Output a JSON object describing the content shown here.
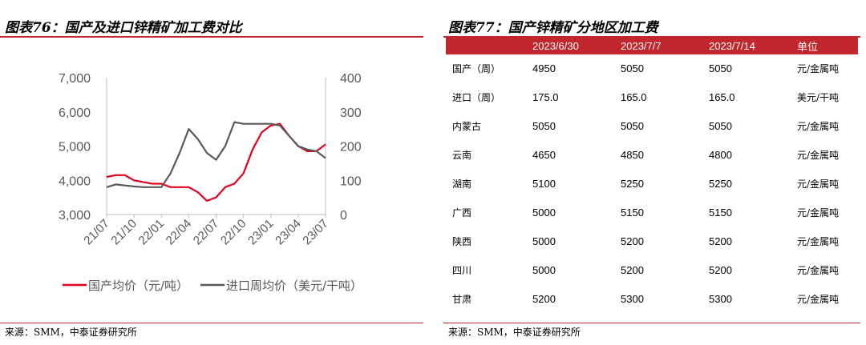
{
  "left_panel": {
    "title": "图表76：国产及进口锌精矿加工费对比",
    "source": "来源：SMM，中泰证券研究所"
  },
  "right_panel": {
    "title": "图表77：国产锌精矿分地区加工费",
    "source": "来源：SMM，中泰证券研究所"
  },
  "colors": {
    "accent": "#c1272d",
    "domestic": "#e3001b",
    "import": "#595959"
  },
  "chart_data": {
    "type": "line",
    "title": "",
    "left_axis": {
      "ticks": [
        "7,000",
        "6,000",
        "5,000",
        "4,000",
        "3,000"
      ],
      "ylim": [
        3000,
        7000
      ]
    },
    "right_axis": {
      "ticks": [
        "400",
        "300",
        "200",
        "100",
        "0"
      ],
      "ylim": [
        0,
        400
      ]
    },
    "x_ticks": [
      "21/07",
      "21/10",
      "22/01",
      "22/04",
      "22/07",
      "22/10",
      "23/01",
      "23/04",
      "23/07"
    ],
    "legend_position": "bottom",
    "series": [
      {
        "name": "国产均价（元/吨）",
        "axis": "left",
        "color": "#e3001b",
        "x": [
          "21/07",
          "21/08",
          "21/09",
          "21/10",
          "21/11",
          "21/12",
          "22/01",
          "22/02",
          "22/03",
          "22/04",
          "22/05",
          "22/06",
          "22/07",
          "22/08",
          "22/09",
          "22/10",
          "22/11",
          "22/12",
          "23/01",
          "23/02",
          "23/03",
          "23/04",
          "23/05",
          "23/06",
          "23/07"
        ],
        "values": [
          4100,
          4150,
          4150,
          4000,
          3950,
          3900,
          3900,
          3800,
          3800,
          3800,
          3650,
          3400,
          3500,
          3800,
          3900,
          4200,
          4900,
          5400,
          5600,
          5650,
          5300,
          5000,
          4850,
          4850,
          5050
        ]
      },
      {
        "name": "进口周均价（美元/干吨）",
        "axis": "right",
        "color": "#595959",
        "x": [
          "21/07",
          "21/08",
          "21/09",
          "21/10",
          "21/11",
          "21/12",
          "22/01",
          "22/02",
          "22/03",
          "22/04",
          "22/05",
          "22/06",
          "22/07",
          "22/08",
          "22/09",
          "22/10",
          "22/11",
          "22/12",
          "23/01",
          "23/02",
          "23/03",
          "23/04",
          "23/05",
          "23/06",
          "23/07"
        ],
        "values": [
          80,
          88,
          85,
          82,
          80,
          80,
          80,
          120,
          180,
          250,
          220,
          180,
          160,
          200,
          270,
          265,
          265,
          265,
          265,
          260,
          230,
          200,
          190,
          185,
          165
        ]
      }
    ]
  },
  "table": {
    "headers": [
      "",
      "2023/6/30",
      "2023/7/7",
      "2023/7/14",
      "单位"
    ],
    "rows": [
      [
        "国产（周）",
        "4950",
        "5050",
        "5050",
        "元/金属吨"
      ],
      [
        "进口（周）",
        "175.0",
        "165.0",
        "165.0",
        "美元/干吨"
      ],
      [
        "内蒙古",
        "5050",
        "5050",
        "5050",
        "元/金属吨"
      ],
      [
        "云南",
        "4650",
        "4850",
        "4800",
        "元/金属吨"
      ],
      [
        "湖南",
        "5100",
        "5250",
        "5250",
        "元/金属吨"
      ],
      [
        "广西",
        "5000",
        "5150",
        "5150",
        "元/金属吨"
      ],
      [
        "陕西",
        "5000",
        "5200",
        "5200",
        "元/金属吨"
      ],
      [
        "四川",
        "5000",
        "5200",
        "5200",
        "元/金属吨"
      ],
      [
        "甘肃",
        "5200",
        "5300",
        "5300",
        "元/金属吨"
      ]
    ]
  }
}
